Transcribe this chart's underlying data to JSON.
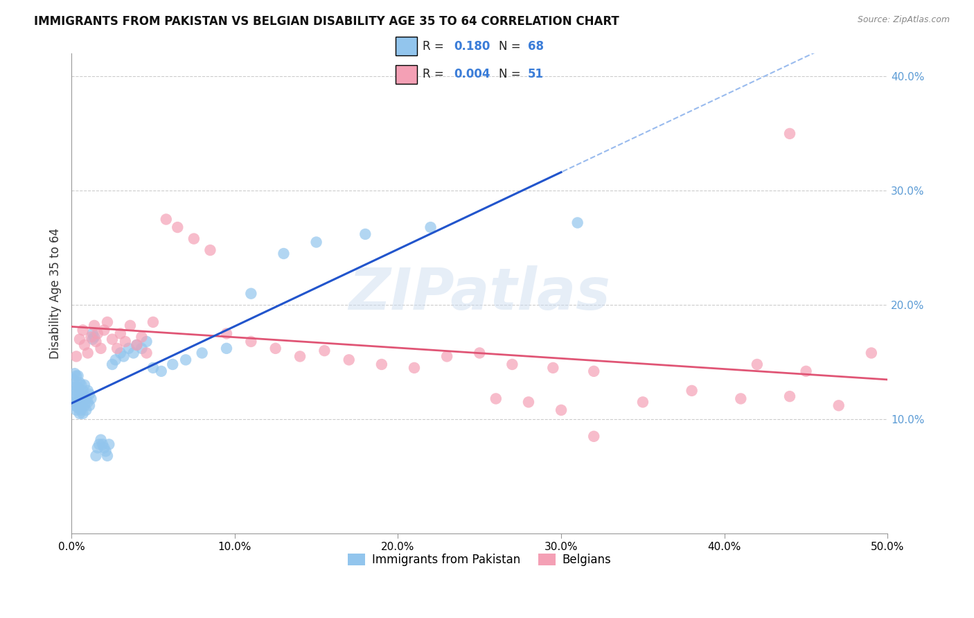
{
  "title": "IMMIGRANTS FROM PAKISTAN VS BELGIAN DISABILITY AGE 35 TO 64 CORRELATION CHART",
  "source": "Source: ZipAtlas.com",
  "ylabel_label": "Disability Age 35 to 64",
  "xlim": [
    0.0,
    0.5
  ],
  "ylim": [
    0.0,
    0.42
  ],
  "xticks": [
    0.0,
    0.1,
    0.2,
    0.3,
    0.4,
    0.5
  ],
  "yticks": [
    0.1,
    0.2,
    0.3,
    0.4
  ],
  "xtick_labels": [
    "0.0%",
    "10.0%",
    "20.0%",
    "30.0%",
    "40.0%",
    "50.0%"
  ],
  "ytick_labels": [
    "10.0%",
    "20.0%",
    "30.0%",
    "40.0%"
  ],
  "background_color": "#ffffff",
  "grid_color": "#cccccc",
  "blue_color": "#92C5ED",
  "pink_color": "#F4A0B5",
  "trendline_blue_solid": "#2255CC",
  "trendline_blue_dashed": "#99BBEE",
  "trendline_pink_solid": "#E05575",
  "R_blue": 0.18,
  "N_blue": 68,
  "R_pink": 0.004,
  "N_pink": 51,
  "legend_label_blue": "Immigrants from Pakistan",
  "legend_label_pink": "Belgians",
  "watermark": "ZIPatlas",
  "pakistan_x": [
    0.001,
    0.001,
    0.001,
    0.002,
    0.002,
    0.002,
    0.002,
    0.003,
    0.003,
    0.003,
    0.003,
    0.004,
    0.004,
    0.004,
    0.004,
    0.005,
    0.005,
    0.005,
    0.005,
    0.006,
    0.006,
    0.006,
    0.007,
    0.007,
    0.007,
    0.008,
    0.008,
    0.008,
    0.009,
    0.009,
    0.01,
    0.01,
    0.011,
    0.011,
    0.012,
    0.013,
    0.013,
    0.014,
    0.015,
    0.016,
    0.017,
    0.018,
    0.019,
    0.02,
    0.021,
    0.022,
    0.023,
    0.025,
    0.027,
    0.03,
    0.032,
    0.035,
    0.038,
    0.04,
    0.043,
    0.046,
    0.05,
    0.055,
    0.062,
    0.07,
    0.08,
    0.095,
    0.11,
    0.13,
    0.15,
    0.18,
    0.22,
    0.31
  ],
  "pakistan_y": [
    0.118,
    0.128,
    0.135,
    0.112,
    0.12,
    0.13,
    0.14,
    0.108,
    0.115,
    0.125,
    0.138,
    0.11,
    0.118,
    0.128,
    0.138,
    0.105,
    0.112,
    0.122,
    0.132,
    0.108,
    0.118,
    0.13,
    0.105,
    0.115,
    0.125,
    0.112,
    0.12,
    0.13,
    0.108,
    0.118,
    0.115,
    0.125,
    0.112,
    0.122,
    0.118,
    0.17,
    0.175,
    0.172,
    0.068,
    0.075,
    0.078,
    0.082,
    0.078,
    0.075,
    0.072,
    0.068,
    0.078,
    0.148,
    0.152,
    0.158,
    0.155,
    0.162,
    0.158,
    0.165,
    0.162,
    0.168,
    0.145,
    0.142,
    0.148,
    0.152,
    0.158,
    0.162,
    0.21,
    0.245,
    0.255,
    0.262,
    0.268,
    0.272
  ],
  "belgian_x": [
    0.003,
    0.005,
    0.007,
    0.008,
    0.01,
    0.012,
    0.014,
    0.015,
    0.016,
    0.018,
    0.02,
    0.022,
    0.025,
    0.028,
    0.03,
    0.033,
    0.036,
    0.04,
    0.043,
    0.046,
    0.05,
    0.058,
    0.065,
    0.075,
    0.085,
    0.095,
    0.11,
    0.125,
    0.14,
    0.155,
    0.17,
    0.19,
    0.21,
    0.23,
    0.25,
    0.27,
    0.295,
    0.32,
    0.35,
    0.38,
    0.41,
    0.44,
    0.47,
    0.49,
    0.26,
    0.28,
    0.3,
    0.32,
    0.42,
    0.45,
    0.44
  ],
  "belgian_y": [
    0.155,
    0.17,
    0.178,
    0.165,
    0.158,
    0.172,
    0.182,
    0.168,
    0.175,
    0.162,
    0.178,
    0.185,
    0.17,
    0.162,
    0.175,
    0.168,
    0.182,
    0.165,
    0.172,
    0.158,
    0.185,
    0.275,
    0.268,
    0.258,
    0.248,
    0.175,
    0.168,
    0.162,
    0.155,
    0.16,
    0.152,
    0.148,
    0.145,
    0.155,
    0.158,
    0.148,
    0.145,
    0.142,
    0.115,
    0.125,
    0.118,
    0.12,
    0.112,
    0.158,
    0.118,
    0.115,
    0.108,
    0.085,
    0.148,
    0.142,
    0.35
  ]
}
